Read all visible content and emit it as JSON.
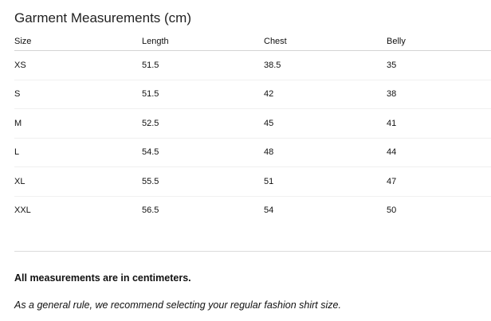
{
  "title": "Garment Measurements (cm)",
  "table": {
    "headers": [
      "Size",
      "Length",
      "Chest",
      "Belly"
    ],
    "rows": [
      [
        "XS",
        "51.5",
        "38.5",
        "35"
      ],
      [
        "S",
        "51.5",
        "42",
        "38"
      ],
      [
        "M",
        "52.5",
        "45",
        "41"
      ],
      [
        "L",
        "54.5",
        "48",
        "44"
      ],
      [
        "XL",
        "55.5",
        "51",
        "47"
      ],
      [
        "XXL",
        "56.5",
        "54",
        "50"
      ]
    ]
  },
  "notes": {
    "units": "All measurements are in centimeters.",
    "recommendation": "As a general rule, we recommend selecting your regular fashion shirt size."
  }
}
